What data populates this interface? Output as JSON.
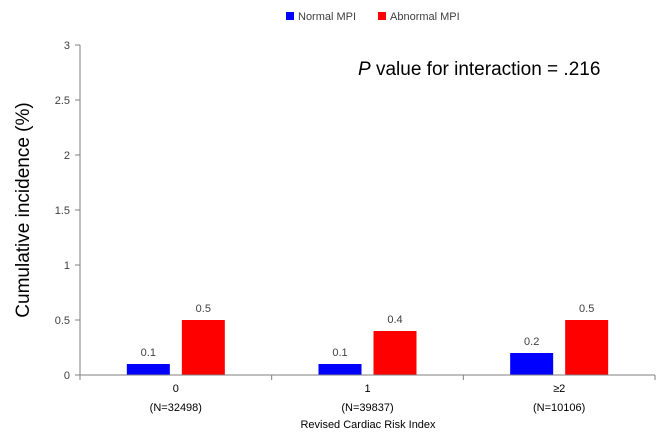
{
  "chart_data": {
    "type": "bar",
    "categories": [
      "0",
      "1",
      "≥2"
    ],
    "category_sublabels": [
      "(N=32498)",
      "(N=39837)",
      "(N=10106)"
    ],
    "series": [
      {
        "name": "Normal MPI",
        "values": [
          0.1,
          0.1,
          0.2
        ],
        "color": "#0000FF"
      },
      {
        "name": "Abnormal MPI",
        "values": [
          0.5,
          0.4,
          0.5
        ],
        "color": "#FF0000"
      }
    ],
    "xlabel": "Revised Cardiac Risk Index",
    "ylabel": "Cumulative incidence (%)",
    "ylim": [
      0,
      3
    ],
    "yticks": [
      "0",
      "0.5",
      "1",
      "1.5",
      "2",
      "2.5",
      "3"
    ],
    "grid": false,
    "legend_position": "top",
    "annotation": {
      "italic": "P",
      "text": " value for interaction = .216"
    }
  }
}
